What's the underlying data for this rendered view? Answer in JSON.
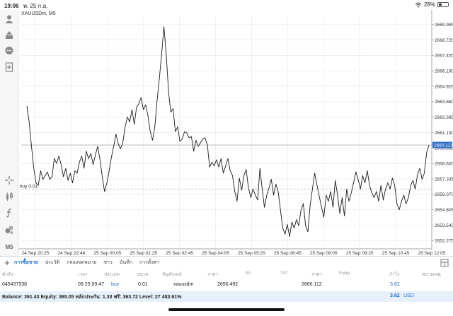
{
  "status": {
    "time": "19:06",
    "date": "พ. 25 ก.ย.",
    "battery": "28%",
    "battery_level": 0.28
  },
  "chart": {
    "symbol_label": "XAUUSDm, M5",
    "buy_label": "buy 0.01",
    "current_price": "2660.112",
    "y_ticks": [
      "2669.985",
      "2668.720",
      "2667.455",
      "2666.190",
      "2664.925",
      "2663.660",
      "2662.395",
      "2661.130",
      "2659.865",
      "2658.600",
      "2657.335",
      "2656.070",
      "2654.805",
      "2653.540",
      "2652.275"
    ],
    "x_ticks": [
      "24 Sep 20:25",
      "24 Sep 22:46",
      "25 Sep 00:05",
      "25 Sep 01:25",
      "25 Sep 02:45",
      "25 Sep 04:05",
      "25 Sep 05:25",
      "25 Sep 06:45",
      "25 Sep 08:05",
      "25 Sep 09:25",
      "25 Sep 10:45",
      "25 Sep 12:05"
    ]
  },
  "chart_data": {
    "type": "line",
    "title": "XAUUSDm, M5",
    "xlabel": "",
    "ylabel": "",
    "ylim": [
      2651.6,
      2670.6
    ],
    "grid": true,
    "reference_lines": [
      {
        "label": "buy 0.01",
        "value": 2656.492,
        "style": "dashed"
      },
      {
        "label": "2660.112",
        "value": 2660.112,
        "style": "solid"
      }
    ],
    "x_ticks": [
      "24 Sep 20:25",
      "24 Sep 22:46",
      "25 Sep 00:05",
      "25 Sep 01:25",
      "25 Sep 02:45",
      "25 Sep 04:05",
      "25 Sep 05:25",
      "25 Sep 06:45",
      "25 Sep 08:05",
      "25 Sep 09:25",
      "25 Sep 10:45",
      "25 Sep 12:05"
    ],
    "series": [
      {
        "values": [
          2663.3,
          2662.0,
          2660.0,
          2658.2,
          2657.0,
          2656.8,
          2658.0,
          2657.3,
          2657.6,
          2657.9,
          2657.3,
          2657.5,
          2659.0,
          2658.6,
          2659.2,
          2658.5,
          2657.5,
          2658.2,
          2657.2,
          2657.8,
          2657.0,
          2658.0,
          2657.8,
          2658.7,
          2659.2,
          2658.2,
          2659.6,
          2659.0,
          2659.4,
          2658.5,
          2659.3,
          2660.0,
          2658.9,
          2657.5,
          2656.3,
          2657.0,
          2658.0,
          2659.1,
          2660.0,
          2661.0,
          2660.2,
          2659.8,
          2660.3,
          2661.6,
          2662.4,
          2662.0,
          2663.0,
          2661.8,
          2663.2,
          2663.5,
          2664.0,
          2663.0,
          2663.4,
          2662.5,
          2661.2,
          2660.5,
          2661.6,
          2663.8,
          2665.6,
          2667.6,
          2669.8,
          2667.5,
          2664.5,
          2662.8,
          2663.1,
          2661.2,
          2661.6,
          2660.4,
          2660.6,
          2661.2,
          2661.1,
          2660.7,
          2660.8,
          2659.6,
          2660.5,
          2660.0,
          2660.3,
          2660.6,
          2660.7,
          2660.1,
          2658.3,
          2658.7,
          2658.4,
          2658.9,
          2658.3,
          2659.0,
          2657.8,
          2658.4,
          2659.0,
          2658.0,
          2657.6,
          2656.3,
          2655.5,
          2657.4,
          2656.4,
          2657.6,
          2658.1,
          2656.6,
          2655.8,
          2656.5,
          2656.0,
          2655.6,
          2658.2,
          2656.5,
          2655.0,
          2656.0,
          2656.6,
          2657.3,
          2656.0,
          2656.9,
          2656.3,
          2654.8,
          2653.3,
          2652.8,
          2653.6,
          2652.6,
          2653.8,
          2653.3,
          2654.0,
          2653.5,
          2654.8,
          2655.3,
          2653.5,
          2653.0,
          2655.2,
          2656.5,
          2657.8,
          2656.8,
          2655.9,
          2655.0,
          2654.2,
          2656.0,
          2655.5,
          2656.3,
          2655.0,
          2657.2,
          2656.0,
          2654.5,
          2655.8,
          2654.3,
          2656.5,
          2655.5,
          2656.2,
          2657.0,
          2657.9,
          2657.3,
          2656.5,
          2657.6,
          2657.0,
          2658.0,
          2656.8,
          2656.2,
          2655.8,
          2656.3,
          2655.5,
          2656.8,
          2655.6,
          2656.5,
          2657.0,
          2656.5,
          2657.4,
          2656.8,
          2655.3,
          2654.8,
          2655.5,
          2656.0,
          2655.3,
          2655.8,
          2656.8,
          2657.2,
          2656.5,
          2657.7,
          2658.2,
          2657.3,
          2657.8,
          2659.5,
          2660.1
        ]
      }
    ]
  },
  "tools": [
    "account-icon",
    "trade-icon",
    "chat-icon",
    "add-document-icon",
    "crosshair-icon",
    "indicators-icon",
    "function-icon",
    "shapes-icon",
    "timeframe-m5"
  ],
  "tools_m5": "M5",
  "tabs": [
    "การซื้อขาย",
    "ประวัติ",
    "กล่องจดหมาย",
    "ข่าว",
    "บันทึก",
    "การตั้งค่า"
  ],
  "columns": [
    "คำสั่ง",
    "เวลา",
    "ประเภท",
    "ขนาด",
    "สัญลักษณ์",
    "ราคา",
    "S/L",
    "T/P",
    "ราคา",
    "Swap",
    "กำไร",
    "หมายเหตุ"
  ],
  "position": {
    "ticket": "645437538",
    "time": "09.25 09:47",
    "type": "buy",
    "volume": "0.01",
    "symbol": "xauusdm",
    "open_price": "2656.492",
    "current_price": "2660.112",
    "profit": "3.62"
  },
  "balance": {
    "summary": "Balance: 361.43 Equity: 365.05 หลักประกัน: 1.33 ฟรี: 363.72 Level: 27 483.61%",
    "total": "3.62",
    "currency": "USD"
  },
  "colors": {
    "accent": "#1f6fd1",
    "price_line": "#1a1a1a",
    "grid": "#e6e6e6",
    "price_tag": "#2f6fc6"
  }
}
